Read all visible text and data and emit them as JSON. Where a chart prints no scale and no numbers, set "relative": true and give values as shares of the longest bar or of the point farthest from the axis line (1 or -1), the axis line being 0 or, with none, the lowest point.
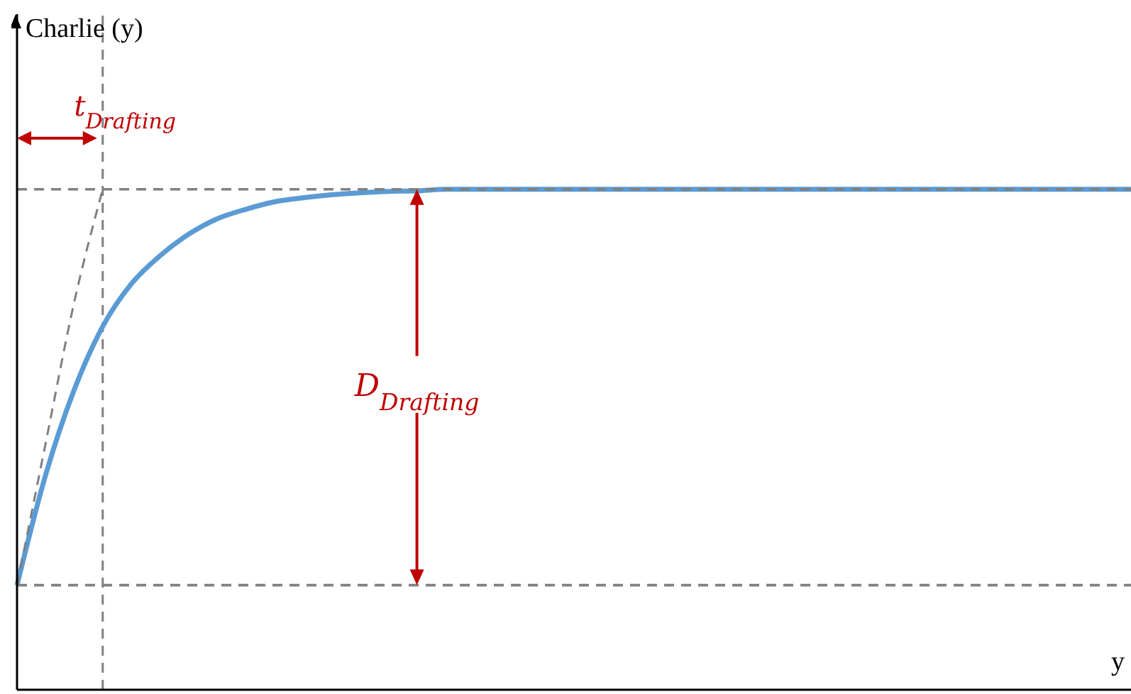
{
  "chart_data": {
    "type": "line",
    "relative": true,
    "xlabel": "y",
    "categories": [
      null,
      null,
      null,
      null,
      null,
      null,
      null,
      null,
      null,
      null,
      null,
      null,
      null,
      null,
      null,
      null,
      null,
      null,
      null,
      null,
      null,
      null,
      null,
      null,
      null,
      null,
      null,
      null,
      null,
      null,
      null,
      null,
      null,
      null,
      null,
      null,
      null,
      null,
      null,
      null
    ],
    "series": [
      {
        "color": "#5b9bd5",
        "values": [
          0.209,
          0.429,
          0.599,
          0.726,
          0.811,
          0.867,
          0.91,
          0.941,
          0.96,
          0.975,
          0.983,
          0.989,
          0.993,
          0.996,
          0.997,
          1,
          1,
          1,
          1,
          1,
          1,
          1,
          1,
          1,
          1,
          1,
          1,
          1,
          1,
          1,
          1,
          1,
          1,
          1,
          1,
          1,
          1,
          1,
          1,
          1
        ]
      },
      {
        "color": "#808080",
        "line_style": "dashed",
        "values": [
          0.209,
          0.492,
          0.774,
          1,
          null,
          null,
          null,
          null,
          null,
          null,
          null,
          null,
          null,
          null,
          null,
          null,
          null,
          null,
          null,
          null,
          null,
          null,
          null,
          null,
          null,
          null,
          null,
          null,
          null,
          null,
          null,
          null,
          null,
          null,
          null,
          null,
          null,
          null,
          null,
          null
        ]
      }
    ],
    "ref_lines": [
      {
        "axis": "y",
        "value": 0.209,
        "color": "#808080",
        "line_style": "dashed"
      },
      {
        "axis": "y",
        "value": 1,
        "color": "#808080",
        "line_style": "dashed"
      }
    ],
    "annotations": [
      "t$_{Drafting}$",
      "D$_{Drafting}$",
      "Charlie (y)"
    ],
    "marker": "none"
  }
}
